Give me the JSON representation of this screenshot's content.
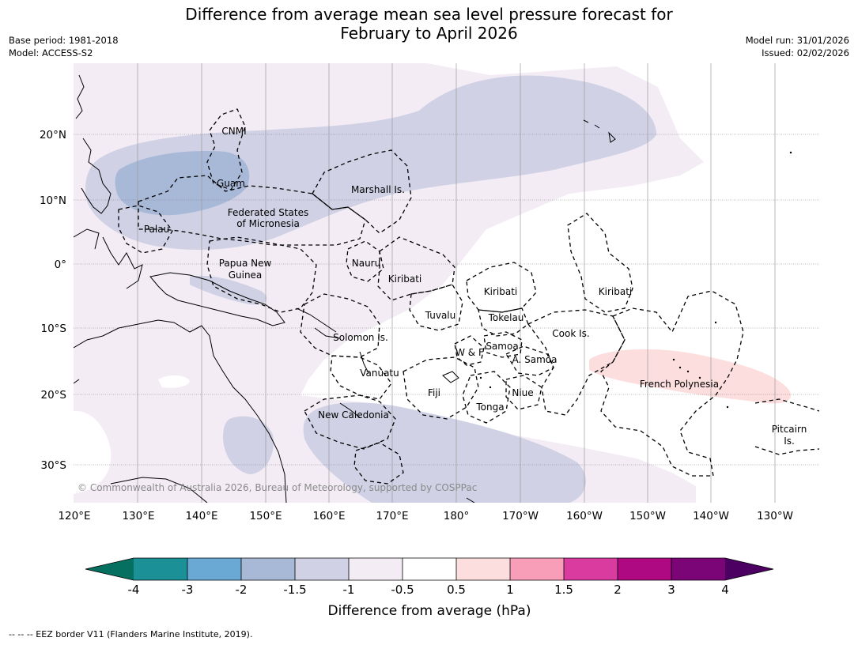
{
  "title": {
    "line1": "Difference from average mean sea level pressure forecast for",
    "line2": "February to April 2026"
  },
  "meta": {
    "base_period": "Base period: 1981-2018",
    "model": "Model: ACCESS-S2",
    "model_run": "Model run: 31/01/2026",
    "issued": "Issued: 02/02/2026"
  },
  "axes": {
    "lat_labels": [
      "20°N",
      "10°N",
      "0°",
      "10°S",
      "20°S",
      "30°S"
    ],
    "lon_labels": [
      "120°E",
      "130°E",
      "140°E",
      "150°E",
      "160°E",
      "170°E",
      "180°",
      "170°W",
      "160°W",
      "150°W",
      "140°W",
      "130°W"
    ]
  },
  "regions": {
    "cnmi": "CNMI",
    "guam": "Guam",
    "marshall": "Marshall Is.",
    "fsm_1": "Federated States",
    "fsm_2": "of Micronesia",
    "palau": "Palau",
    "png_1": "Papua New",
    "png_2": "Guinea",
    "nauru": "Nauru",
    "kiribati_w": "Kiribati",
    "kiribati_c": "Kiribati",
    "kiribati_e": "Kiribati",
    "tuvalu": "Tuvalu",
    "tokelau": "Tokelau",
    "solomon": "Solomon Is.",
    "samoa": "Samoa",
    "wf": "W & F",
    "asamoa": "A. Samoa",
    "cook": "Cook Is.",
    "vanuatu": "Vanuatu",
    "fiji": "Fiji",
    "niue": "Niue",
    "tonga": "Tonga",
    "frenchpoly": "French Polynesia",
    "newcal": "New Caledonia",
    "pitcairn_1": "Pitcairn",
    "pitcairn_2": "Is."
  },
  "copyright": "© Commonwealth of Australia 2026, Bureau of Meteorology, supported by COSPPac",
  "colorbar": {
    "title": "Difference from average (hPa)",
    "ticks": [
      "-4",
      "-3",
      "-2",
      "-1.5",
      "-1",
      "-0.5",
      "0.5",
      "1",
      "1.5",
      "2",
      "3",
      "4"
    ],
    "colors": {
      "lt_m4": "#05705f",
      "m4_m3": "#1b9096",
      "m3_m2": "#69a9d4",
      "m2_m15": "#a8b9d8",
      "m15_m1": "#d0d1e5",
      "m1_m05": "#f3ecf5",
      "m05_05": "#ffffff",
      "p05_1": "#fddede",
      "p1_15": "#f89eb8",
      "p15_2": "#d93b9f",
      "p2_3": "#ae0982",
      "p3_4": "#7b0577",
      "gt_4": "#4b0062"
    }
  },
  "footnote": "--  --  -- EEZ border V11 (Flanders Marine Institute, 2019)."
}
